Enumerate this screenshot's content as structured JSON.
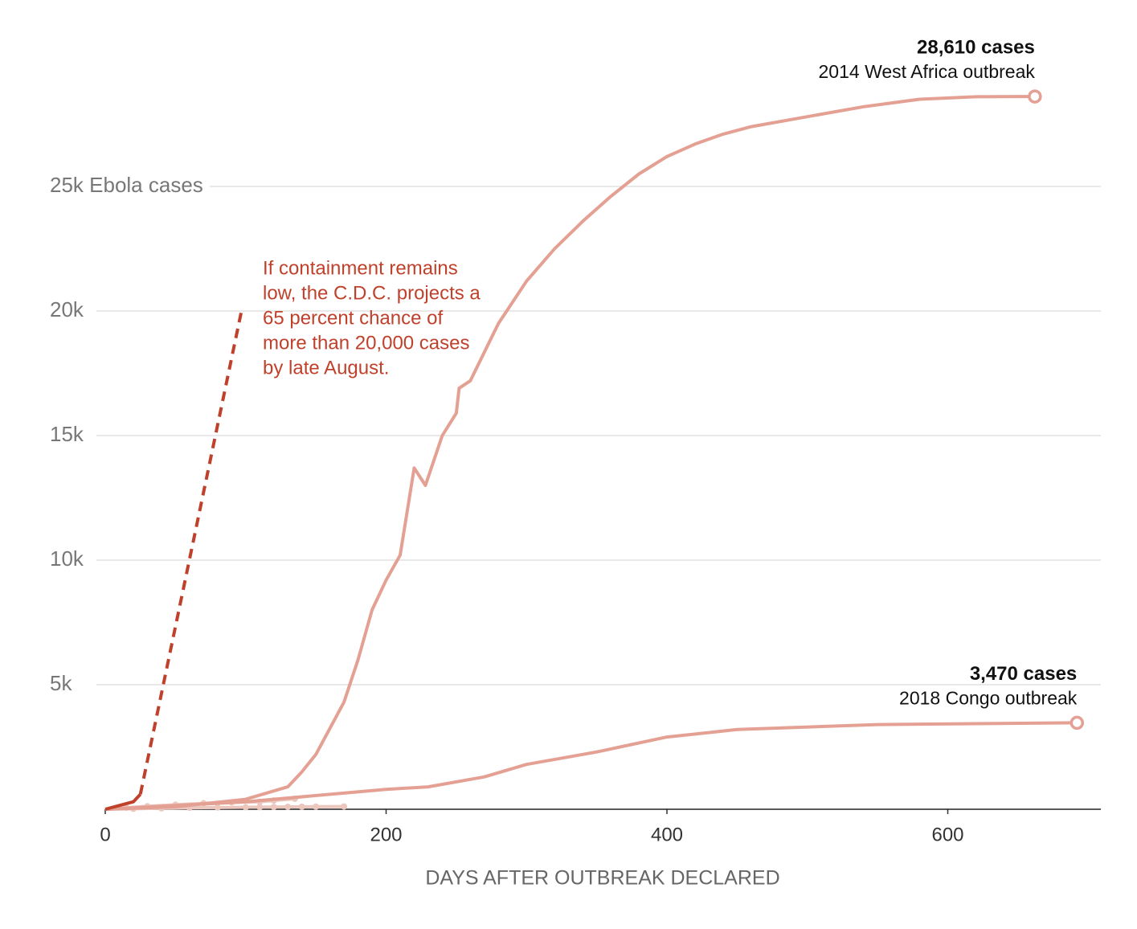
{
  "chart_data": {
    "type": "line",
    "x_label": "DAYS AFTER OUTBREAK DECLARED",
    "xlim": [
      0,
      709
    ],
    "xticks": [
      0,
      200,
      400,
      600
    ],
    "ylim": [
      0,
      30000
    ],
    "yticks": [
      {
        "value": 5000,
        "label": "5k"
      },
      {
        "value": 10000,
        "label": "10k"
      },
      {
        "value": 15000,
        "label": "15k"
      },
      {
        "value": 20000,
        "label": "20k"
      },
      {
        "value": 25000,
        "label": "25k Ebola cases"
      }
    ],
    "grid": true,
    "annotation": [
      "If containment remains",
      "low, the C.D.C. projects a",
      "65 percent chance of",
      "more than 20,000 cases",
      "by late August."
    ],
    "series": [
      {
        "color": "#ebc7be",
        "dots": true,
        "x": [
          0,
          20,
          40,
          60,
          80,
          100,
          110,
          120,
          130,
          140,
          150,
          170
        ],
        "values": [
          0,
          20,
          40,
          60,
          70,
          80,
          85,
          90,
          95,
          100,
          105,
          110
        ]
      },
      {
        "color": "#ebc7be",
        "dots": true,
        "x": [
          0,
          15,
          30,
          50,
          70,
          90,
          110,
          120,
          135
        ],
        "values": [
          0,
          60,
          120,
          180,
          240,
          280,
          300,
          350,
          420
        ]
      },
      {
        "name": "2014 West Africa outbreak",
        "color": "#e3a093",
        "x": [
          0,
          50,
          100,
          130,
          140,
          150,
          170,
          180,
          190,
          200,
          210,
          220,
          228,
          240,
          250,
          252,
          260,
          280,
          300,
          320,
          340,
          360,
          380,
          400,
          420,
          440,
          460,
          500,
          540,
          580,
          620,
          662
        ],
        "values": [
          0,
          100,
          400,
          900,
          1500,
          2200,
          4300,
          6000,
          8000,
          9200,
          10200,
          13700,
          13000,
          15000,
          15900,
          16900,
          17200,
          19500,
          21200,
          22500,
          23600,
          24600,
          25500,
          26200,
          26700,
          27100,
          27400,
          27800,
          28200,
          28500,
          28600,
          28610
        ],
        "value_labels": [
          null,
          null,
          null,
          null,
          null,
          null,
          null,
          null,
          null,
          null,
          null,
          null,
          null,
          null,
          null,
          null,
          null,
          null,
          null,
          null,
          null,
          null,
          null,
          null,
          null,
          null,
          null,
          null,
          null,
          null,
          null,
          "28,610 cases"
        ]
      },
      {
        "name": "2018 Congo outbreak",
        "color": "#e3a093",
        "x": [
          0,
          100,
          200,
          230,
          270,
          300,
          350,
          400,
          450,
          550,
          692
        ],
        "values": [
          0,
          300,
          800,
          900,
          1300,
          1800,
          2300,
          2900,
          3200,
          3400,
          3470
        ],
        "value_labels": [
          null,
          null,
          null,
          null,
          null,
          null,
          null,
          null,
          null,
          null,
          "3,470 cases"
        ]
      },
      {
        "color": "#c0412b",
        "x": [
          0,
          10,
          20,
          25
        ],
        "values": [
          0,
          150,
          300,
          600
        ]
      },
      {
        "color": "#c0412b",
        "dash": true,
        "x": [
          25,
          97
        ],
        "values": [
          600,
          20000
        ]
      }
    ]
  }
}
